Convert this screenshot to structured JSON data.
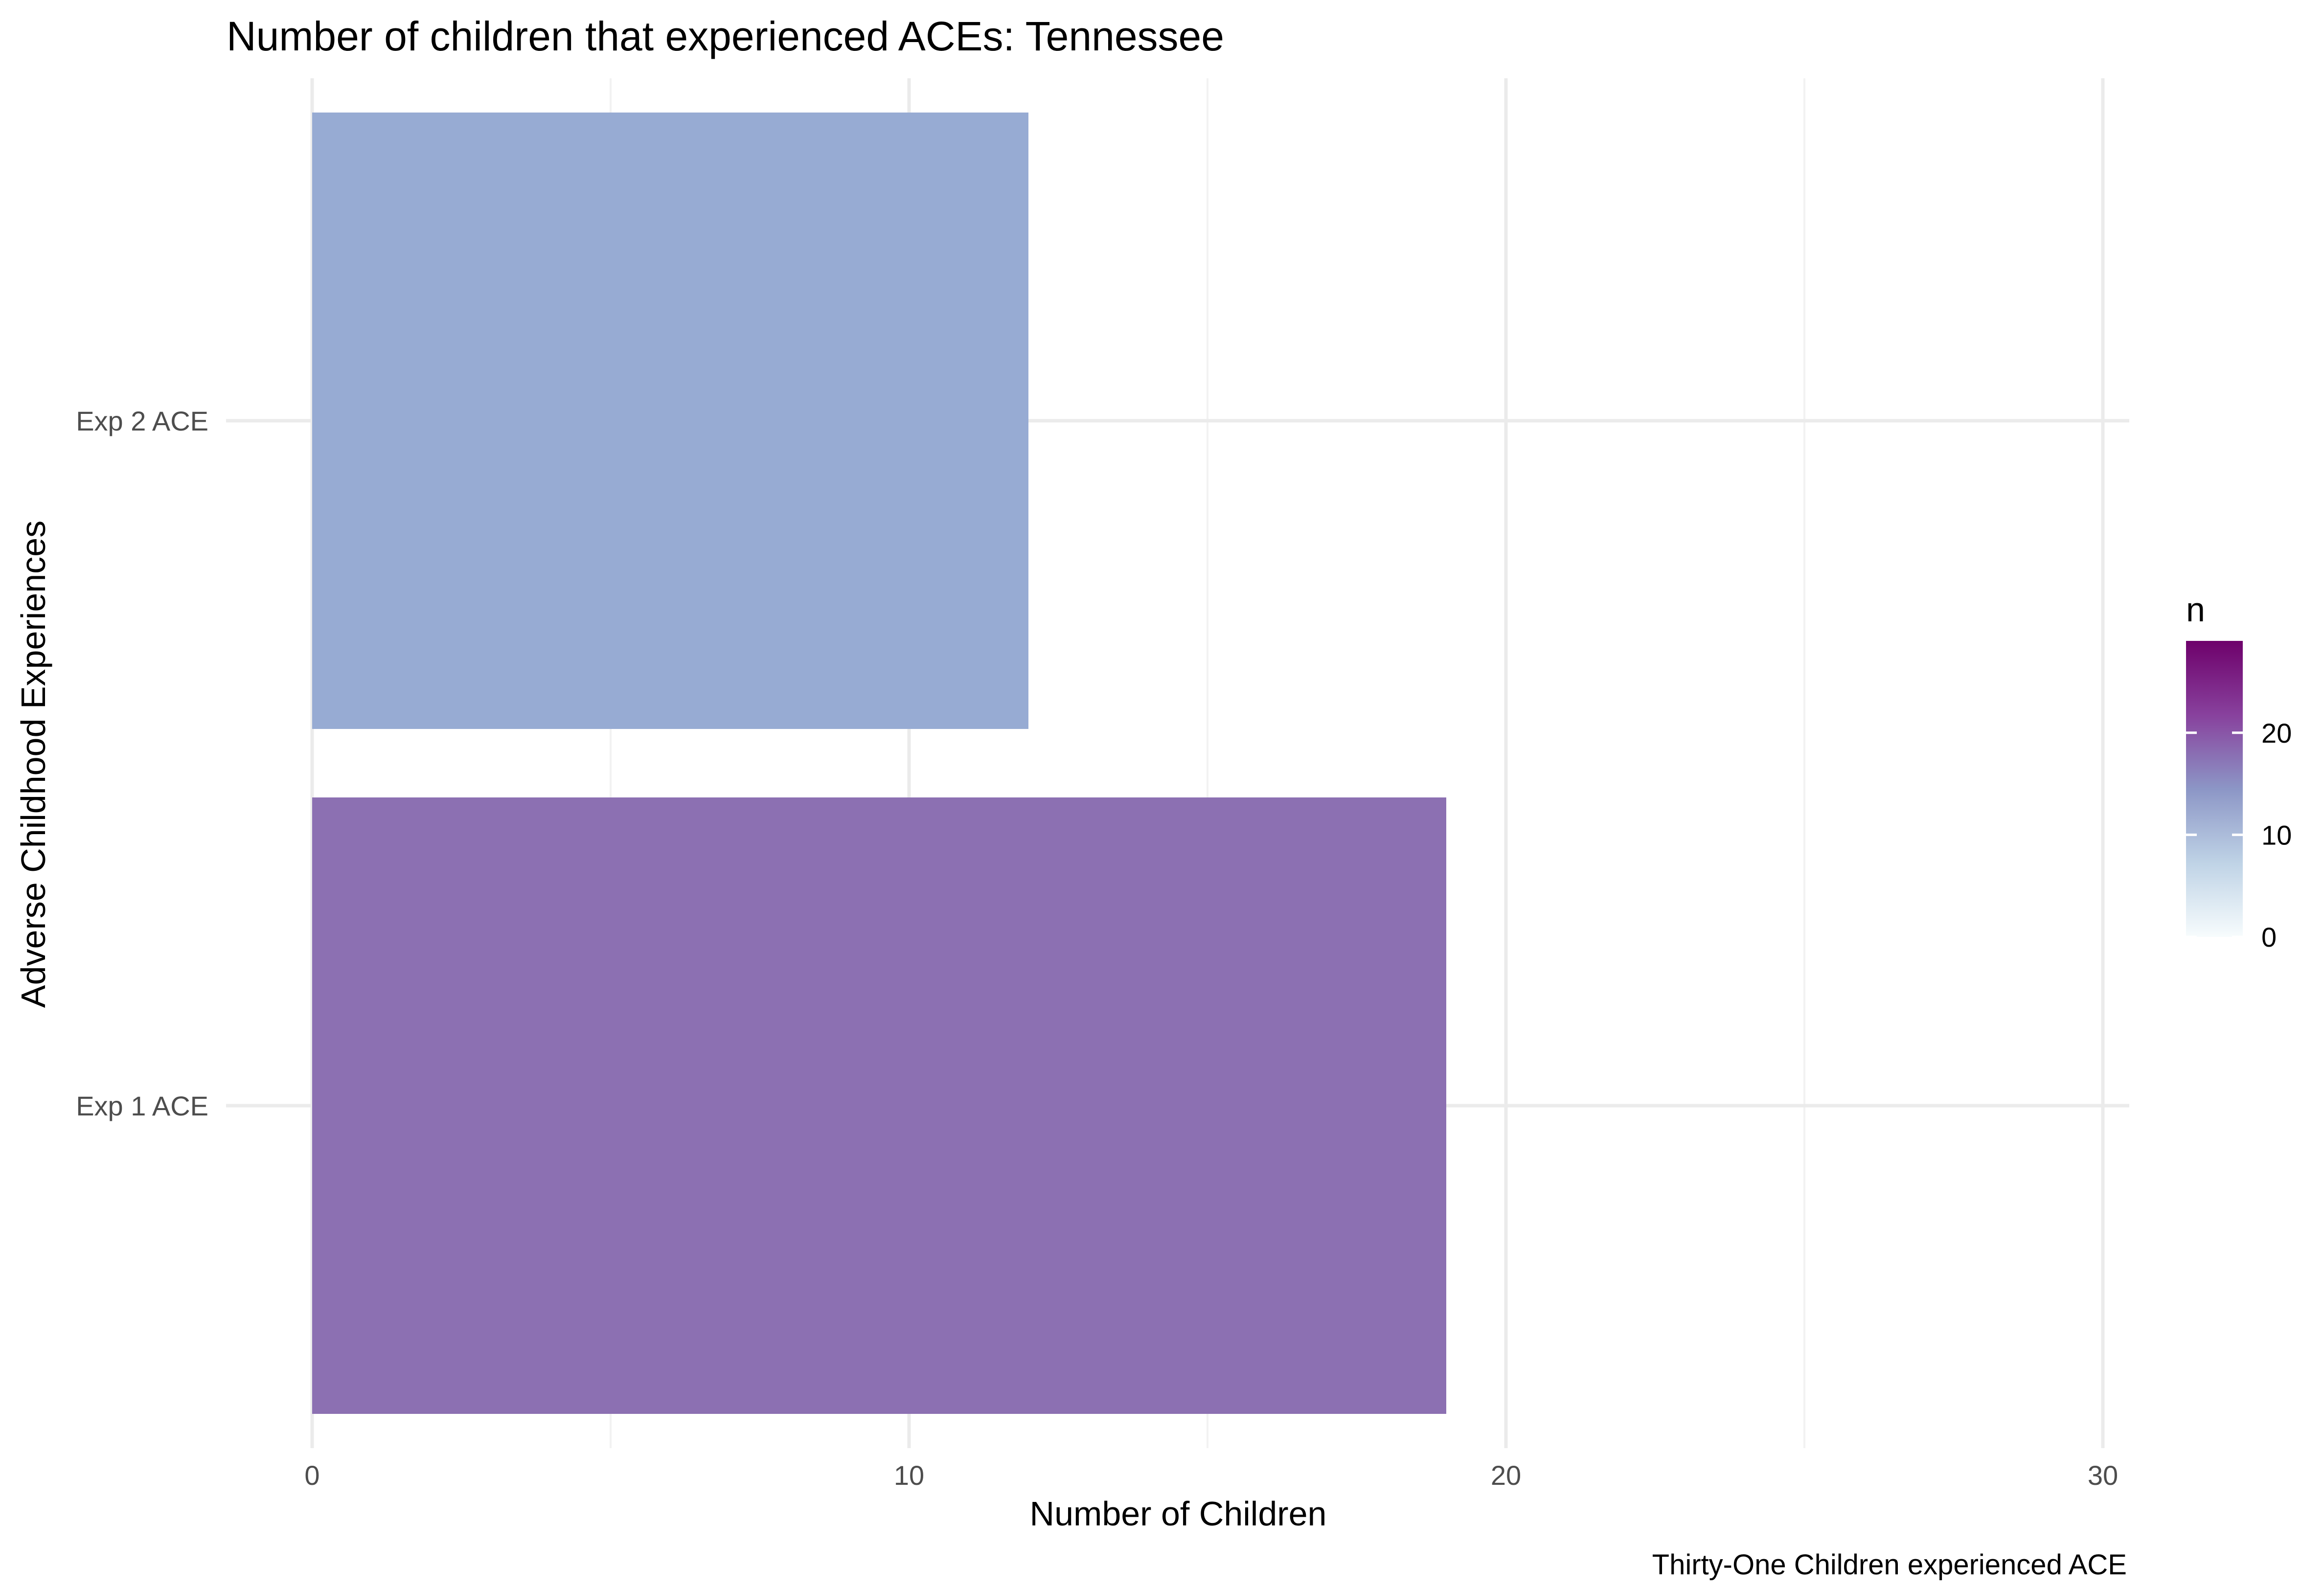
{
  "chart_data": {
    "type": "bar",
    "orientation": "horizontal",
    "title": "Number of children that experienced ACEs: Tennessee",
    "xlabel": "Number of Children",
    "ylabel": "Adverse Childhood Experiences",
    "caption": "Thirty-One Children experienced ACE",
    "categories": [
      "Exp 1 ACE",
      "Exp 2 ACE"
    ],
    "values": [
      19,
      12
    ],
    "bar_colors": [
      "#8c70b2",
      "#97abd3"
    ],
    "xlim": [
      0,
      30.5
    ],
    "x_ticks": [
      0,
      10,
      20,
      30
    ],
    "x_minor_ticks": [
      5,
      15,
      25
    ],
    "grid": true,
    "legend": {
      "title": "n",
      "position": "right",
      "type": "colorbar",
      "range": [
        0,
        29
      ],
      "ticks": [
        0,
        10,
        20
      ],
      "colors": [
        "#f7fcfd",
        "#bfd3e6",
        "#8c96c6",
        "#88419d",
        "#6e016b"
      ]
    }
  }
}
